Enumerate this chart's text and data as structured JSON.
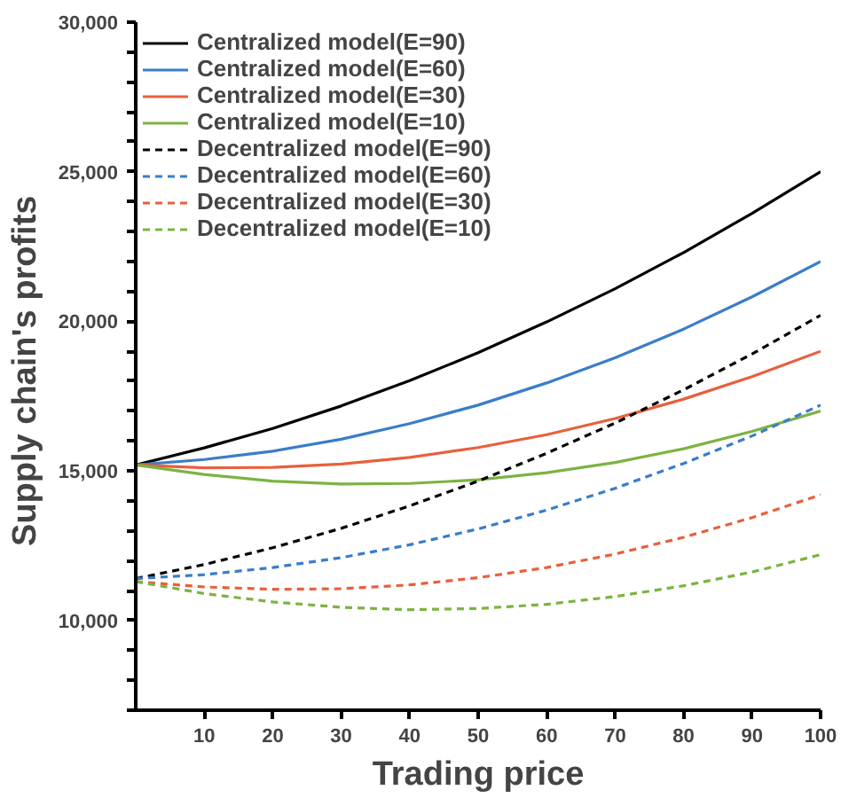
{
  "chart_data": {
    "type": "line",
    "xlabel": "Trading price",
    "ylabel": "Supply  chain's profits",
    "x": [
      0,
      10,
      20,
      30,
      40,
      50,
      60,
      70,
      80,
      90,
      100
    ],
    "xlim": [
      0,
      100
    ],
    "xticks": [
      10,
      20,
      30,
      40,
      50,
      60,
      70,
      80,
      90,
      100
    ],
    "ylim": [
      7000,
      30000
    ],
    "yticks": [
      {
        "value": 7000,
        "label": null
      },
      {
        "value": 8000,
        "label": null
      },
      {
        "value": 9000,
        "label": null
      },
      {
        "value": 10000,
        "label": "10,000"
      },
      {
        "value": 11000,
        "label": null
      },
      {
        "value": 12000,
        "label": null
      },
      {
        "value": 13000,
        "label": null
      },
      {
        "value": 14000,
        "label": null
      },
      {
        "value": 15000,
        "label": "15,000"
      },
      {
        "value": 16000,
        "label": null
      },
      {
        "value": 17000,
        "label": null
      },
      {
        "value": 18000,
        "label": null
      },
      {
        "value": 19000,
        "label": null
      },
      {
        "value": 20000,
        "label": "20,000"
      },
      {
        "value": 21000,
        "label": null
      },
      {
        "value": 22000,
        "label": null
      },
      {
        "value": 23000,
        "label": null
      },
      {
        "value": 24000,
        "label": null
      },
      {
        "value": 25000,
        "label": "25,000"
      },
      {
        "value": 26000,
        "label": null
      },
      {
        "value": 27000,
        "label": null
      },
      {
        "value": 28000,
        "label": null
      },
      {
        "value": 29000,
        "label": null
      },
      {
        "value": 30000,
        "label": "30,000"
      }
    ],
    "grid": false,
    "legend": "top left",
    "marker": "none",
    "series": [
      {
        "name": "Centralized model(E=90)",
        "color": "#000000",
        "line_style": "solid",
        "values": [
          15200,
          15770,
          16420,
          17170,
          18020,
          18950,
          19980,
          21090,
          22300,
          23610,
          25000
        ]
      },
      {
        "name": "Centralized model(E=60)",
        "color": "#3a7dc9",
        "line_style": "solid",
        "values": [
          15200,
          15380,
          15660,
          16060,
          16580,
          17200,
          17940,
          18780,
          19740,
          20820,
          22000
        ]
      },
      {
        "name": "Centralized model(E=30)",
        "color": "#e8603c",
        "line_style": "solid",
        "values": [
          15200,
          15100,
          15120,
          15230,
          15450,
          15780,
          16210,
          16750,
          17400,
          18150,
          19000
        ]
      },
      {
        "name": "Centralized model(E=10)",
        "color": "#7cb342",
        "line_style": "solid",
        "values": [
          15200,
          14880,
          14660,
          14560,
          14580,
          14700,
          14940,
          15280,
          15740,
          16320,
          17000
        ]
      },
      {
        "name": "Decentralized model(E=90)",
        "color": "#000000",
        "line_style": "dashed",
        "values": [
          11400,
          11870,
          12430,
          13080,
          13830,
          14660,
          15590,
          16600,
          17710,
          18910,
          20200
        ]
      },
      {
        "name": "Decentralized model(E=60)",
        "color": "#3a7dc9",
        "line_style": "dashed",
        "values": [
          11400,
          11530,
          11770,
          12100,
          12530,
          13060,
          13690,
          14420,
          15250,
          16170,
          17200
        ]
      },
      {
        "name": "Decentralized model(E=30)",
        "color": "#e8603c",
        "line_style": "dashed",
        "values": [
          11300,
          11120,
          11040,
          11060,
          11190,
          11430,
          11770,
          12220,
          12780,
          13440,
          14200
        ]
      },
      {
        "name": "Decentralized model(E=10)",
        "color": "#7cb342",
        "line_style": "dashed",
        "values": [
          11300,
          10900,
          10620,
          10440,
          10360,
          10400,
          10540,
          10800,
          11160,
          11620,
          12200
        ]
      }
    ]
  }
}
